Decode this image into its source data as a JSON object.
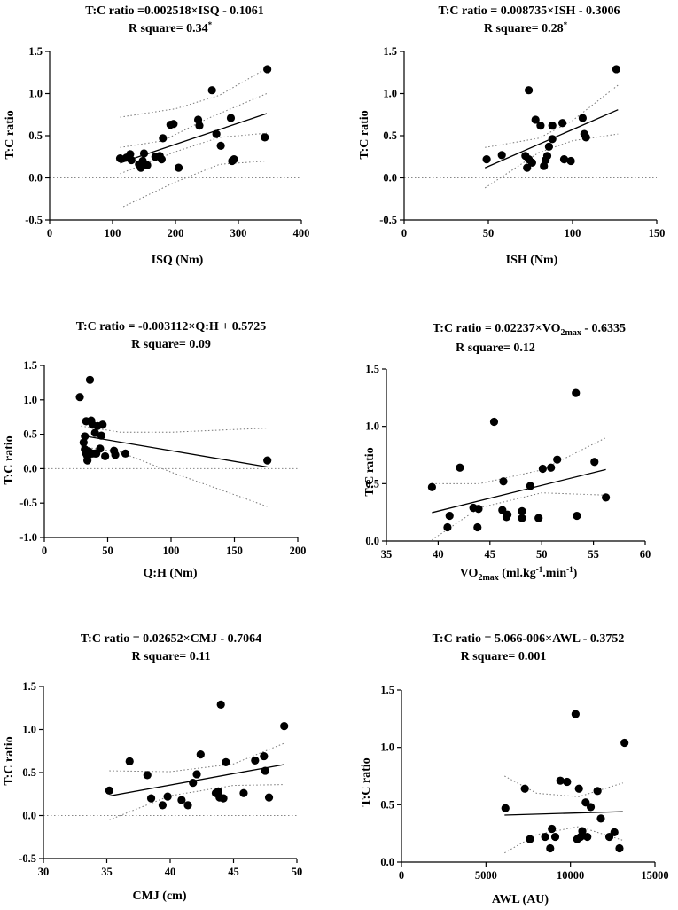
{
  "figure": {
    "panels": [
      {
        "title_line1": "T:C ratio =0.002518×ISQ - 0.1061",
        "title_line2": "R square= 0.34",
        "title_sup": "*",
        "xlabel": "ISQ (Nm)",
        "ylabel": "T:C ratio"
      },
      {
        "title_line1": "T:C ratio = 0.008735×ISH - 0.3006",
        "title_line2": "R square= 0.28",
        "title_sup": "*",
        "xlabel": "ISH (Nm)",
        "ylabel": "T:C ratio"
      },
      {
        "title_line1": "T:C ratio = -0.003112×Q:H + 0.5725",
        "title_line2": "R square= 0.09",
        "title_sup": "",
        "xlabel": "Q:H (Nm)",
        "ylabel": "T:C ratio"
      },
      {
        "title_pre": "T:C ratio = 0.02237×VO",
        "title_sub": "2max",
        "title_post": " - 0.6335",
        "title_line2": "R square= 0.12",
        "title_sup": "",
        "xlabel_pre": "VO",
        "xlabel_sub": "2max",
        "xlabel_post1": " (ml.kg",
        "xlabel_sup1": "-1",
        "xlabel_post2": ".min",
        "xlabel_sup2": "-1",
        "xlabel_post3": ")",
        "ylabel": "T:C ratio"
      },
      {
        "title_line1": "T:C ratio = 0.02652×CMJ - 0.7064",
        "title_line2": "R square= 0.11",
        "title_sup": "",
        "xlabel": "CMJ  (cm)",
        "ylabel": "T:C ratio"
      },
      {
        "title_line1": "T:C ratio = 5.066-006×AWL - 0.3752",
        "title_line2": "R square= 0.001",
        "title_sup": "",
        "xlabel": "AWL (AU)",
        "ylabel": "T:C ratio"
      }
    ]
  },
  "chart_data": [
    {
      "type": "scatter",
      "title": "T:C ratio =0.002518×ISQ - 0.1061 / R square= 0.34*",
      "xlabel": "ISQ (Nm)",
      "ylabel": "T:C ratio",
      "xlim": [
        0,
        400
      ],
      "ylim": [
        -0.5,
        1.5
      ],
      "xticks": [
        0,
        100,
        200,
        300,
        400
      ],
      "yticks": [
        -0.5,
        0.0,
        0.5,
        1.0,
        1.5
      ],
      "xtick_labels": [
        "0",
        "100",
        "200",
        "300",
        "400"
      ],
      "ytick_labels": [
        "-0.5",
        "0.0",
        "0.5",
        "1.0",
        "1.5"
      ],
      "fit": {
        "slope": 0.002518,
        "intercept": -0.1061,
        "x_range": [
          112,
          345
        ]
      },
      "ci_upper": [
        [
          112,
          0.72
        ],
        [
          200,
          0.82
        ],
        [
          270,
          0.98
        ],
        [
          345,
          1.3
        ]
      ],
      "ci_lower": [
        [
          112,
          -0.36
        ],
        [
          200,
          -0.05
        ],
        [
          270,
          0.16
        ],
        [
          345,
          0.2
        ]
      ],
      "ci_upper_inner": [
        [
          112,
          0.36
        ],
        [
          180,
          0.44
        ],
        [
          250,
          0.7
        ],
        [
          345,
          1.0
        ]
      ],
      "ci_lower_inner": [
        [
          112,
          0.05
        ],
        [
          200,
          0.31
        ],
        [
          270,
          0.48
        ],
        [
          345,
          0.53
        ]
      ],
      "points": [
        [
          112,
          0.23
        ],
        [
          122,
          0.24
        ],
        [
          128,
          0.28
        ],
        [
          130,
          0.21
        ],
        [
          142,
          0.16
        ],
        [
          145,
          0.12
        ],
        [
          148,
          0.2
        ],
        [
          150,
          0.29
        ],
        [
          155,
          0.15
        ],
        [
          168,
          0.25
        ],
        [
          175,
          0.26
        ],
        [
          178,
          0.22
        ],
        [
          180,
          0.47
        ],
        [
          192,
          0.63
        ],
        [
          197,
          0.64
        ],
        [
          205,
          0.12
        ],
        [
          236,
          0.69
        ],
        [
          238,
          0.62
        ],
        [
          258,
          1.04
        ],
        [
          265,
          0.52
        ],
        [
          272,
          0.38
        ],
        [
          288,
          0.71
        ],
        [
          290,
          0.2
        ],
        [
          293,
          0.22
        ],
        [
          342,
          0.48
        ],
        [
          346,
          1.29
        ]
      ]
    },
    {
      "type": "scatter",
      "title": "T:C ratio = 0.008735×ISH - 0.3006 / R square= 0.28*",
      "xlabel": "ISH (Nm)",
      "ylabel": "T:C ratio",
      "xlim": [
        0,
        150
      ],
      "ylim": [
        -0.5,
        1.5
      ],
      "xticks": [
        0,
        50,
        100,
        150
      ],
      "yticks": [
        -0.5,
        0.0,
        0.5,
        1.0,
        1.5
      ],
      "xtick_labels": [
        "0",
        "50",
        "100",
        "150"
      ],
      "ytick_labels": [
        "-0.5",
        "0.0",
        "0.5",
        "1.0",
        "1.5"
      ],
      "fit": {
        "slope": 0.008735,
        "intercept": -0.3006,
        "x_range": [
          48,
          127
        ]
      },
      "ci_upper": [
        [
          48,
          0.36
        ],
        [
          80,
          0.47
        ],
        [
          100,
          0.68
        ],
        [
          127,
          1.1
        ]
      ],
      "ci_lower": [
        [
          48,
          -0.12
        ],
        [
          80,
          0.3
        ],
        [
          100,
          0.44
        ],
        [
          127,
          0.52
        ]
      ],
      "points": [
        [
          49,
          0.22
        ],
        [
          58,
          0.27
        ],
        [
          72,
          0.26
        ],
        [
          73,
          0.12
        ],
        [
          74,
          0.22
        ],
        [
          74,
          1.04
        ],
        [
          76,
          0.18
        ],
        [
          78,
          0.69
        ],
        [
          81,
          0.62
        ],
        [
          83,
          0.14
        ],
        [
          84,
          0.21
        ],
        [
          85,
          0.26
        ],
        [
          86,
          0.37
        ],
        [
          88,
          0.62
        ],
        [
          88,
          0.46
        ],
        [
          94,
          0.65
        ],
        [
          95,
          0.22
        ],
        [
          99,
          0.2
        ],
        [
          106,
          0.71
        ],
        [
          107,
          0.52
        ],
        [
          108,
          0.48
        ],
        [
          126,
          1.29
        ]
      ]
    },
    {
      "type": "scatter",
      "title": "T:C ratio = -0.003112×Q:H + 0.5725 / R square= 0.09",
      "xlabel": "Q:H (Nm)",
      "ylabel": "T:C ratio",
      "xlim": [
        0,
        200
      ],
      "ylim": [
        -1.0,
        1.5
      ],
      "xticks": [
        0,
        50,
        100,
        150,
        200
      ],
      "yticks": [
        -1.0,
        -0.5,
        0.0,
        0.5,
        1.0,
        1.5
      ],
      "xtick_labels": [
        "0",
        "50",
        "100",
        "150",
        "200"
      ],
      "ytick_labels": [
        "-1.0",
        "-0.5",
        "0.0",
        "0.5",
        "1.0",
        "1.5"
      ],
      "fit": {
        "slope": -0.003112,
        "intercept": 0.5725,
        "x_range": [
          29,
          176
        ]
      },
      "ci_upper": [
        [
          29,
          0.62
        ],
        [
          60,
          0.53
        ],
        [
          100,
          0.53
        ],
        [
          176,
          0.59
        ]
      ],
      "ci_lower": [
        [
          29,
          0.32
        ],
        [
          60,
          0.24
        ],
        [
          100,
          -0.05
        ],
        [
          176,
          -0.55
        ]
      ],
      "points": [
        [
          28,
          1.04
        ],
        [
          31,
          0.38
        ],
        [
          32,
          0.47
        ],
        [
          32,
          0.28
        ],
        [
          33,
          0.69
        ],
        [
          33,
          0.22
        ],
        [
          34,
          0.18
        ],
        [
          34,
          0.12
        ],
        [
          35,
          0.25
        ],
        [
          35,
          0.2
        ],
        [
          36,
          1.29
        ],
        [
          37,
          0.7
        ],
        [
          38,
          0.22
        ],
        [
          38,
          0.64
        ],
        [
          40,
          0.52
        ],
        [
          40,
          0.22
        ],
        [
          41,
          0.22
        ],
        [
          42,
          0.62
        ],
        [
          44,
          0.29
        ],
        [
          45,
          0.48
        ],
        [
          46,
          0.64
        ],
        [
          48,
          0.18
        ],
        [
          55,
          0.26
        ],
        [
          56,
          0.2
        ],
        [
          64,
          0.22
        ],
        [
          176,
          0.12
        ]
      ]
    },
    {
      "type": "scatter",
      "title": "T:C ratio = 0.02237×VO2max - 0.6335 / R square= 0.12",
      "xlabel": "VO2max (ml.kg-1.min-1)",
      "ylabel": "T:C ratio",
      "xlim": [
        35,
        60
      ],
      "ylim": [
        0.0,
        1.5
      ],
      "xticks": [
        35,
        40,
        45,
        50,
        55,
        60
      ],
      "yticks": [
        0.0,
        0.5,
        1.0,
        1.5
      ],
      "xtick_labels": [
        "35",
        "40",
        "45",
        "50",
        "55",
        "60"
      ],
      "ytick_labels": [
        "0.0",
        "0.5",
        "1.0",
        "1.5"
      ],
      "fit": {
        "slope": 0.02237,
        "intercept": -0.6335,
        "x_range": [
          39.4,
          56.2
        ]
      },
      "ci_upper": [
        [
          39.4,
          0.5
        ],
        [
          44,
          0.5
        ],
        [
          50,
          0.62
        ],
        [
          56.2,
          0.9
        ]
      ],
      "ci_lower": [
        [
          39.4,
          0.01
        ],
        [
          44,
          0.29
        ],
        [
          50,
          0.42
        ],
        [
          56.2,
          0.4
        ]
      ],
      "points": [
        [
          39.4,
          0.47
        ],
        [
          40.9,
          0.12
        ],
        [
          41.1,
          0.22
        ],
        [
          42.1,
          0.64
        ],
        [
          43.4,
          0.29
        ],
        [
          43.8,
          0.12
        ],
        [
          43.9,
          0.28
        ],
        [
          45.4,
          1.04
        ],
        [
          46.2,
          0.27
        ],
        [
          46.3,
          0.52
        ],
        [
          46.6,
          0.21
        ],
        [
          46.7,
          0.23
        ],
        [
          48.1,
          0.2
        ],
        [
          48.1,
          0.26
        ],
        [
          48.9,
          0.48
        ],
        [
          49.7,
          0.2
        ],
        [
          50.1,
          0.63
        ],
        [
          50.9,
          0.64
        ],
        [
          51.5,
          0.71
        ],
        [
          53.3,
          1.29
        ],
        [
          53.4,
          0.22
        ],
        [
          55.1,
          0.69
        ],
        [
          56.2,
          0.38
        ]
      ]
    },
    {
      "type": "scatter",
      "title": "T:C ratio = 0.02652×CMJ - 0.7064 / R square= 0.11",
      "xlabel": "CMJ  (cm)",
      "ylabel": "T:C ratio",
      "xlim": [
        30,
        50
      ],
      "ylim": [
        -0.5,
        1.5
      ],
      "xticks": [
        30,
        35,
        40,
        45,
        50
      ],
      "yticks": [
        -0.5,
        0.0,
        0.5,
        1.0,
        1.5
      ],
      "xtick_labels": [
        "30",
        "35",
        "40",
        "45",
        "50"
      ],
      "ytick_labels": [
        "-0.5",
        "0.0",
        "0.5",
        "1.0",
        "1.5"
      ],
      "fit": {
        "slope": 0.02652,
        "intercept": -0.7064,
        "x_range": [
          35.2,
          49
        ]
      },
      "ci_upper": [
        [
          35.2,
          0.52
        ],
        [
          40,
          0.51
        ],
        [
          45,
          0.6
        ],
        [
          49,
          0.84
        ]
      ],
      "ci_lower": [
        [
          35.2,
          -0.05
        ],
        [
          40,
          0.23
        ],
        [
          45,
          0.35
        ],
        [
          49,
          0.36
        ]
      ],
      "points": [
        [
          35.2,
          0.29
        ],
        [
          36.8,
          0.63
        ],
        [
          38.2,
          0.47
        ],
        [
          38.5,
          0.2
        ],
        [
          39.4,
          0.12
        ],
        [
          39.8,
          0.22
        ],
        [
          40.9,
          0.18
        ],
        [
          41.4,
          0.12
        ],
        [
          41.8,
          0.38
        ],
        [
          42.1,
          0.48
        ],
        [
          42.4,
          0.71
        ],
        [
          43.6,
          0.26
        ],
        [
          43.8,
          0.28
        ],
        [
          43.9,
          0.21
        ],
        [
          44.0,
          1.29
        ],
        [
          44.2,
          0.2
        ],
        [
          44.4,
          0.62
        ],
        [
          45.8,
          0.26
        ],
        [
          46.7,
          0.64
        ],
        [
          47.4,
          0.69
        ],
        [
          47.5,
          0.52
        ],
        [
          47.8,
          0.21
        ],
        [
          49.0,
          1.04
        ]
      ]
    },
    {
      "type": "scatter",
      "title": "T:C ratio = 5.066-006×AWL - 0.3752 / R square= 0.001",
      "xlabel": "AWL (AU)",
      "ylabel": "T:C ratio",
      "xlim": [
        0,
        15000
      ],
      "ylim": [
        0.0,
        1.5
      ],
      "xticks": [
        0,
        5000,
        10000,
        15000
      ],
      "yticks": [
        0.0,
        0.5,
        1.0,
        1.5
      ],
      "xtick_labels": [
        "0",
        "5000",
        "10000",
        "15000"
      ],
      "ytick_labels": [
        "0.0",
        "0.5",
        "1.0",
        "1.5"
      ],
      "fit": {
        "y_start": 0.41,
        "y_end": 0.44,
        "x_range": [
          6100,
          13100
        ]
      },
      "ci_upper": [
        [
          6100,
          0.75
        ],
        [
          8000,
          0.6
        ],
        [
          10500,
          0.57
        ],
        [
          13100,
          0.69
        ]
      ],
      "ci_lower": [
        [
          6100,
          0.08
        ],
        [
          8000,
          0.24
        ],
        [
          10500,
          0.31
        ],
        [
          13100,
          0.19
        ]
      ],
      "points": [
        [
          6150,
          0.47
        ],
        [
          7300,
          0.64
        ],
        [
          7600,
          0.2
        ],
        [
          8500,
          0.22
        ],
        [
          8800,
          0.12
        ],
        [
          8900,
          0.29
        ],
        [
          9100,
          0.22
        ],
        [
          9400,
          0.71
        ],
        [
          9800,
          0.7
        ],
        [
          10300,
          1.29
        ],
        [
          10400,
          0.2
        ],
        [
          10500,
          0.64
        ],
        [
          10600,
          0.22
        ],
        [
          10700,
          0.27
        ],
        [
          10900,
          0.52
        ],
        [
          11000,
          0.22
        ],
        [
          11200,
          0.48
        ],
        [
          11600,
          0.62
        ],
        [
          11800,
          0.38
        ],
        [
          12300,
          0.22
        ],
        [
          12600,
          0.26
        ],
        [
          12900,
          0.12
        ],
        [
          13200,
          1.04
        ]
      ]
    }
  ]
}
